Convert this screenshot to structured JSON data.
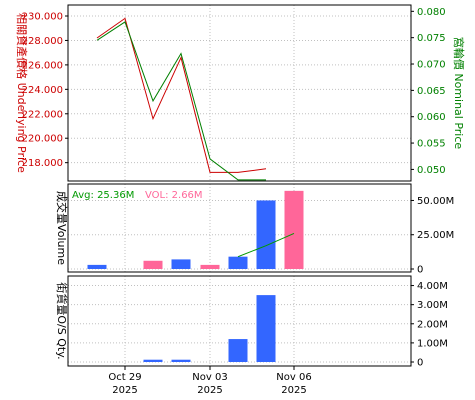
{
  "colors": {
    "underlying": "#cc0000",
    "nominal": "#008000",
    "volume_up": "#ff6699",
    "volume_down": "#3366ff",
    "volume_avg_line": "#009900",
    "os_qty": "#3366ff",
    "grid": "#c0c0c0",
    "frame": "#000000"
  },
  "chart_data": [
    {
      "type": "line",
      "panel": "price",
      "categories": [
        "Oct 28",
        "Oct 29",
        "Oct 30",
        "Oct 31",
        "Nov 03",
        "Nov 04",
        "Nov 05",
        "Nov 06"
      ],
      "ylabel_left": "相關資產價格 Underlying Price",
      "ylabel_right": "窩輪價 Nominal Price",
      "ylim_left": [
        216.5,
        230.9
      ],
      "ylim_right": [
        0.0478,
        0.0812
      ],
      "yticks_left": [
        "218.000",
        "220.000",
        "222.000",
        "224.000",
        "226.000",
        "228.000",
        "230.000"
      ],
      "yticks_right": [
        "0.050",
        "0.055",
        "0.060",
        "0.065",
        "0.070",
        "0.075",
        "0.080"
      ],
      "series": [
        {
          "name": "Underlying Price",
          "axis": "left",
          "color_key": "underlying",
          "values": [
            228.2,
            229.8,
            221.6,
            226.6,
            217.2,
            217.2,
            217.5,
            null
          ]
        },
        {
          "name": "Nominal Price",
          "axis": "right",
          "color_key": "nominal",
          "values": [
            0.0745,
            0.078,
            0.063,
            0.072,
            0.052,
            0.048,
            0.048,
            null
          ]
        }
      ],
      "grid": true
    },
    {
      "type": "bar",
      "panel": "volume",
      "categories": [
        "Oct 28",
        "Oct 29",
        "Oct 30",
        "Oct 31",
        "Nov 03",
        "Nov 04",
        "Nov 05",
        "Nov 06"
      ],
      "ylabel": "成交量Volume",
      "ylim": [
        0,
        62
      ],
      "yticks": [
        "0",
        "25.00M",
        "50.00M"
      ],
      "avg_label": "Avg: 25.36M",
      "vol_label": "VOL: 2.66M",
      "values": [
        3,
        0,
        6,
        7,
        3,
        9,
        50,
        57
      ],
      "bar_colors": [
        "volume_down",
        "volume_down",
        "volume_up",
        "volume_down",
        "volume_up",
        "volume_down",
        "volume_down",
        "volume_up"
      ],
      "avg_line": [
        null,
        null,
        null,
        null,
        null,
        9,
        17,
        26
      ],
      "grid": true
    },
    {
      "type": "bar",
      "panel": "os_qty",
      "categories": [
        "Oct 28",
        "Oct 29",
        "Oct 30",
        "Oct 31",
        "Nov 03",
        "Nov 04",
        "Nov 05",
        "Nov 06"
      ],
      "ylabel": "街貨量O/S Qty.",
      "ylim": [
        0,
        4.5
      ],
      "yticks": [
        "0",
        "1.00M",
        "2.00M",
        "3.00M",
        "4.00M"
      ],
      "values": [
        0,
        0,
        0.12,
        0.12,
        0,
        1.2,
        3.5,
        0
      ],
      "grid": true
    }
  ],
  "x_axis": {
    "labels": [
      {
        "category": "Oct 29",
        "line1": "Oct 29",
        "line2": "2025"
      },
      {
        "category": "Nov 03",
        "line1": "Nov 03",
        "line2": "2025"
      },
      {
        "category": "Nov 06",
        "line1": "Nov 06",
        "line2": "2025"
      }
    ]
  }
}
